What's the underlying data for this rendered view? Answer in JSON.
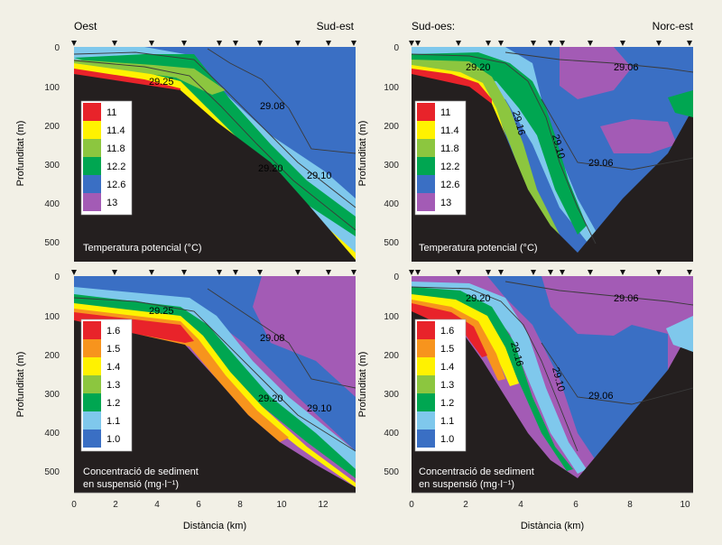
{
  "colors": {
    "c1": "#e8232a",
    "c2": "#f7941d",
    "c3": "#fff200",
    "c4": "#8cc63f",
    "c5": "#00a651",
    "c6": "#7fc8ec",
    "c7": "#3a6fc4",
    "c8": "#a35bb5",
    "seafloor": "#241f1f",
    "background": "#f2f0e6",
    "contour": "#3a3a3a"
  },
  "axes": {
    "ylabel": "Profunditat (m)",
    "xlabel": "Distància (km)",
    "yticks": [
      "0",
      "100",
      "200",
      "300",
      "400",
      "500"
    ],
    "xticks_left": [
      "0",
      "2",
      "4",
      "6",
      "8",
      "10",
      "12"
    ],
    "xticks_right": [
      "0",
      "2",
      "4",
      "6",
      "8",
      "10"
    ]
  },
  "directions": {
    "left_start": "Oest",
    "left_end": "Sud-est",
    "right_start": "Sud-oes:",
    "right_end": "Norc-est"
  },
  "chart_data": [
    {
      "type": "heatmap",
      "id": "temp-west",
      "title": "Temperatura potencial (°C)",
      "xrange_km": [
        0,
        13.8
      ],
      "ylim_m": [
        0,
        550
      ],
      "legend_levels": [
        "11",
        "11.4",
        "11.8",
        "12.2",
        "12.6",
        "13"
      ],
      "contour_labels": [
        "29.25",
        "29.08",
        "29.20",
        "29.10"
      ],
      "seafloor_profile": [
        [
          0,
          65
        ],
        [
          5,
          105
        ],
        [
          7,
          210
        ],
        [
          10,
          375
        ],
        [
          13.8,
          530
        ]
      ]
    },
    {
      "type": "heatmap",
      "id": "temp-southwest",
      "title": "Temperatura potencial (°C)",
      "xrange_km": [
        0,
        10.3
      ],
      "ylim_m": [
        0,
        550
      ],
      "legend_levels": [
        "11",
        "11.4",
        "11.8",
        "12.2",
        "12.6",
        "13"
      ],
      "contour_labels": [
        "29.20",
        "29.06",
        "29.06",
        "29.16",
        "29.10"
      ],
      "seafloor_profile": [
        [
          0,
          70
        ],
        [
          2,
          110
        ],
        [
          3.5,
          250
        ],
        [
          5,
          400
        ],
        [
          6.4,
          520
        ],
        [
          8,
          330
        ],
        [
          10.3,
          130
        ]
      ]
    },
    {
      "type": "heatmap",
      "id": "sed-west",
      "title": "Concentració de sediment en suspensió (mg·l⁻¹)",
      "title_lines": [
        "Concentració de sediment",
        "en suspensió (mg·l⁻¹)"
      ],
      "xrange_km": [
        0,
        13.8
      ],
      "ylim_m": [
        0,
        550
      ],
      "legend_levels": [
        "1.6",
        "1.5",
        "1.4",
        "1.3",
        "1.2",
        "1.1",
        "1.0"
      ],
      "contour_labels": [
        "29.25",
        "29.08",
        "29.20",
        "29.10"
      ],
      "seafloor_profile": [
        [
          0,
          65
        ],
        [
          5,
          105
        ],
        [
          7,
          210
        ],
        [
          10,
          375
        ],
        [
          13.8,
          530
        ]
      ]
    },
    {
      "type": "heatmap",
      "id": "sed-southwest",
      "title": "Concentració de sediment en suspensió (mg·l⁻¹)",
      "title_lines": [
        "Concentració de sediment",
        "en suspensió (mg·l⁻¹)"
      ],
      "xrange_km": [
        0,
        10.3
      ],
      "ylim_m": [
        0,
        550
      ],
      "legend_levels": [
        "1.6",
        "1.5",
        "1.4",
        "1.3",
        "1.2",
        "1.1",
        "1.0"
      ],
      "contour_labels": [
        "29.20",
        "29.06",
        "29.06",
        "29.16",
        "29.10"
      ],
      "seafloor_profile": [
        [
          0,
          70
        ],
        [
          2,
          110
        ],
        [
          3.5,
          250
        ],
        [
          5,
          400
        ],
        [
          6.4,
          520
        ],
        [
          8,
          330
        ],
        [
          10.3,
          130
        ]
      ]
    }
  ]
}
